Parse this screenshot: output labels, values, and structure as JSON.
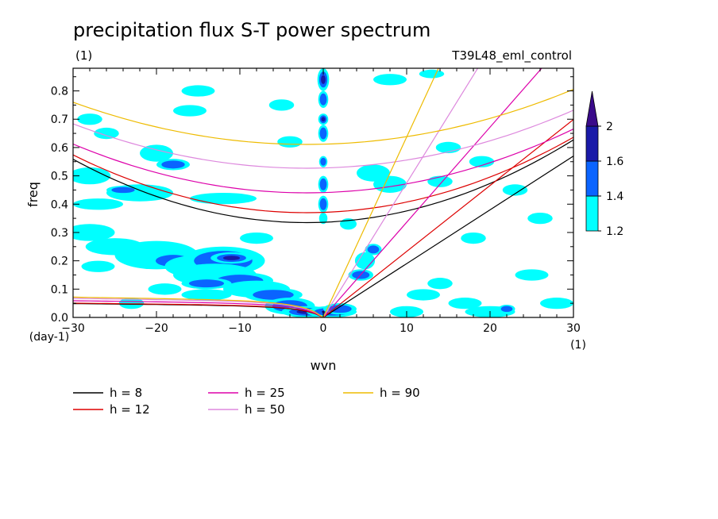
{
  "chart_data": {
    "type": "heatmap",
    "title": "precipitation flux S-T power spectrum",
    "subtitle_left": "(1)",
    "subtitle_right": "T39L48_eml_control",
    "xlabel": "wvn",
    "ylabel": "freq",
    "x_unit": "(1)",
    "y_unit": "(day-1)",
    "xlim": [
      -30,
      30
    ],
    "ylim": [
      0,
      0.88
    ],
    "xticks": [
      -30,
      -20,
      -10,
      0,
      10,
      20,
      30
    ],
    "xtick_labels": [
      "−30",
      "−20",
      "−10",
      "0",
      "10",
      "20",
      "30"
    ],
    "yticks": [
      0.0,
      0.1,
      0.2,
      0.3,
      0.4,
      0.5,
      0.6,
      0.7,
      0.8
    ],
    "ytick_labels": [
      "0.0",
      "0.1",
      "0.2",
      "0.3",
      "0.4",
      "0.5",
      "0.6",
      "0.7",
      "0.8"
    ],
    "colorbar": {
      "levels": [
        1.2,
        1.4,
        1.6,
        2
      ],
      "labels": [
        "1.2",
        "1.4",
        "1.6",
        "2"
      ],
      "colors": [
        "#00ffff",
        "#0a64ff",
        "#1a1aa8",
        "#3a0a8a"
      ],
      "extend": "max"
    },
    "series": [
      {
        "name": "h =  8",
        "h": 8,
        "color": "#000000"
      },
      {
        "name": "h = 12",
        "h": 12,
        "color": "#dd0000"
      },
      {
        "name": "h = 25",
        "h": 25,
        "color": "#dd00aa"
      },
      {
        "name": "h = 50",
        "h": 50,
        "color": "#dd88dd"
      },
      {
        "name": "h = 90",
        "h": 90,
        "color": "#eebb00"
      }
    ],
    "dispersion_curves": {
      "kelvin_slopes": [
        0.019,
        0.0233,
        0.0336,
        0.0475,
        0.0637
      ],
      "eig_n1_min": [
        0.335,
        0.37,
        0.44,
        0.527,
        0.611
      ],
      "eig_n1_curvature": [
        0.000285,
        0.00026,
        0.00022,
        0.0002,
        0.00019
      ],
      "rossby_asymptote": [
        0.058,
        0.06,
        0.07,
        0.08,
        0.085
      ]
    },
    "blobs": [
      [
        -28,
        0.3,
        3.0,
        0.03,
        1
      ],
      [
        -25,
        0.25,
        3.5,
        0.03,
        1
      ],
      [
        -20,
        0.22,
        5,
        0.05,
        1
      ],
      [
        -18,
        0.2,
        3,
        0.03,
        2
      ],
      [
        -15,
        0.18,
        4,
        0.04,
        1
      ],
      [
        -12,
        0.2,
        5,
        0.05,
        2
      ],
      [
        -11,
        0.21,
        2.5,
        0.02,
        3
      ],
      [
        -13,
        0.15,
        5,
        0.04,
        1
      ],
      [
        -10,
        0.13,
        4,
        0.03,
        2
      ],
      [
        -8,
        0.1,
        4,
        0.03,
        1
      ],
      [
        -14,
        0.12,
        3,
        0.02,
        2
      ],
      [
        -6,
        0.08,
        3.5,
        0.025,
        2
      ],
      [
        -4,
        0.04,
        3,
        0.03,
        2
      ],
      [
        -2,
        0.02,
        3,
        0.02,
        3
      ],
      [
        1,
        0.02,
        3,
        0.02,
        3
      ],
      [
        2,
        0.03,
        2,
        0.02,
        2
      ],
      [
        0,
        0.84,
        0.7,
        0.04,
        3
      ],
      [
        0,
        0.77,
        0.6,
        0.03,
        2
      ],
      [
        0,
        0.7,
        0.6,
        0.02,
        3
      ],
      [
        0,
        0.65,
        0.6,
        0.03,
        2
      ],
      [
        0,
        0.55,
        0.5,
        0.02,
        2
      ],
      [
        0,
        0.47,
        0.6,
        0.03,
        2
      ],
      [
        0,
        0.4,
        0.6,
        0.03,
        2
      ],
      [
        0,
        0.35,
        0.5,
        0.02,
        1
      ],
      [
        5,
        0.2,
        1.2,
        0.03,
        1
      ],
      [
        4.5,
        0.15,
        1.5,
        0.02,
        2
      ],
      [
        6,
        0.24,
        1,
        0.02,
        2
      ],
      [
        -22,
        0.44,
        4,
        0.03,
        1
      ],
      [
        -24,
        0.45,
        2,
        0.015,
        2
      ],
      [
        -28,
        0.5,
        2.5,
        0.03,
        1
      ],
      [
        -27,
        0.4,
        3,
        0.02,
        1
      ],
      [
        -12,
        0.42,
        4,
        0.02,
        1
      ],
      [
        -14,
        0.08,
        3,
        0.02,
        1
      ],
      [
        -20,
        0.58,
        2,
        0.03,
        1
      ],
      [
        -18,
        0.54,
        2,
        0.02,
        2
      ],
      [
        -28,
        0.7,
        1.5,
        0.02,
        1
      ],
      [
        -26,
        0.65,
        1.5,
        0.02,
        1
      ],
      [
        -16,
        0.73,
        2,
        0.02,
        1
      ],
      [
        -15,
        0.8,
        2,
        0.02,
        1
      ],
      [
        -5,
        0.75,
        1.5,
        0.02,
        1
      ],
      [
        6,
        0.51,
        2,
        0.03,
        1
      ],
      [
        8,
        0.47,
        2,
        0.03,
        1
      ],
      [
        15,
        0.6,
        1.5,
        0.02,
        1
      ],
      [
        14,
        0.48,
        1.5,
        0.02,
        1
      ],
      [
        17,
        0.05,
        2,
        0.02,
        1
      ],
      [
        20,
        0.02,
        3,
        0.02,
        1
      ],
      [
        22,
        0.03,
        1,
        0.015,
        2
      ],
      [
        28,
        0.05,
        2,
        0.02,
        1
      ],
      [
        12,
        0.08,
        2,
        0.02,
        1
      ],
      [
        14,
        0.12,
        1.5,
        0.02,
        1
      ],
      [
        18,
        0.28,
        1.5,
        0.02,
        1
      ],
      [
        23,
        0.45,
        1.5,
        0.02,
        1
      ],
      [
        25,
        0.15,
        2,
        0.02,
        1
      ],
      [
        10,
        0.02,
        2,
        0.02,
        1
      ],
      [
        -23,
        0.05,
        1.5,
        0.02,
        1
      ],
      [
        -27,
        0.18,
        2,
        0.02,
        1
      ],
      [
        -8,
        0.28,
        2,
        0.02,
        1
      ],
      [
        -4,
        0.62,
        1.5,
        0.02,
        1
      ],
      [
        8,
        0.84,
        2,
        0.02,
        1
      ],
      [
        13,
        0.86,
        1.5,
        0.015,
        1
      ],
      [
        -19,
        0.1,
        2,
        0.02,
        1
      ],
      [
        3,
        0.33,
        1,
        0.02,
        1
      ],
      [
        26,
        0.35,
        1.5,
        0.02,
        1
      ],
      [
        19,
        0.55,
        1.5,
        0.02,
        1
      ]
    ]
  }
}
